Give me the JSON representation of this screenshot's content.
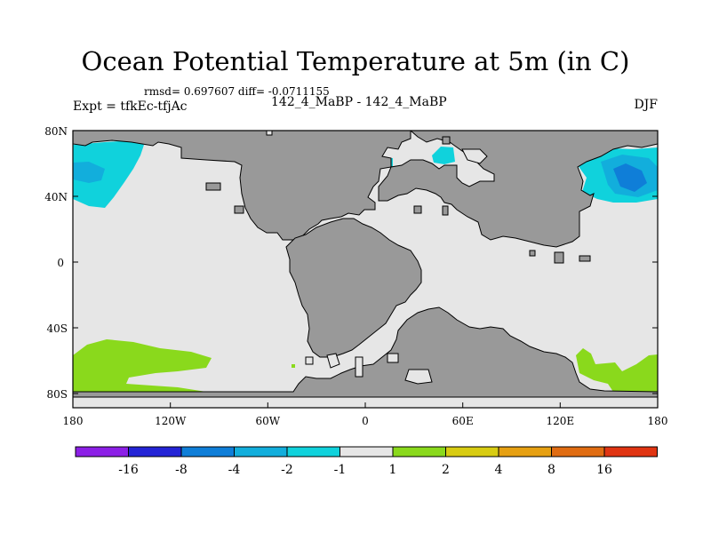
{
  "title": "Ocean Potential Temperature at 5m (in C)",
  "stats": "rmsd= 0.697607 diff= -0.0711155",
  "experiment": "Expt = tfkEc-tfjAc",
  "comparison": "142_4_MaBP - 142_4_MaBP",
  "season": "DJF",
  "map": {
    "lat_ticks": [
      "80N",
      "40N",
      "0",
      "40S",
      "80S"
    ],
    "lon_ticks": [
      "180",
      "120W",
      "60W",
      "0",
      "60E",
      "120E",
      "180"
    ],
    "colors": {
      "land": "#999999",
      "ocean_neutral": "#e6e6e6",
      "cool_cyan": "#10d2dc",
      "cool_blue": "#0f7ed8",
      "warm_green": "#8ad91c"
    }
  },
  "colorbar": {
    "labels": [
      "-16",
      "-8",
      "-4",
      "-2",
      "-1",
      "1",
      "2",
      "4",
      "8",
      "16"
    ],
    "colors": [
      "#8c1fe6",
      "#2424d6",
      "#0f7ed8",
      "#12aedc",
      "#10d2dc",
      "#e6e6e6",
      "#8ad91c",
      "#d8cc12",
      "#e6a012",
      "#e06c12",
      "#e03412"
    ]
  }
}
